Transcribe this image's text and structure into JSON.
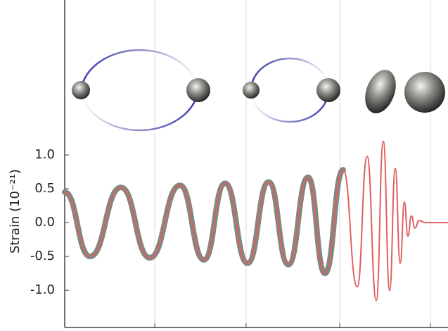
{
  "chart_data": {
    "type": "line",
    "ylabel": "Strain (10⁻²¹)",
    "xlim": [
      0,
      545
    ],
    "xticks": [
      128,
      258,
      391,
      520
    ],
    "ylim": [
      -1.55,
      3.29
    ],
    "yticks": [
      {
        "value": 1,
        "label": "1.0"
      },
      {
        "value": 0.5,
        "label": "0.5"
      },
      {
        "value": 0,
        "label": "0.0"
      },
      {
        "value": -0.5,
        "label": "-0.5"
      },
      {
        "value": -1,
        "label": "-1.0"
      }
    ],
    "grid": true,
    "series": [
      {
        "color": "#7d8a83",
        "width": 8,
        "x": [
          0,
          36,
          80,
          121,
          164,
          198,
          228,
          260,
          290,
          318,
          346,
          370,
          396
        ],
        "values": [
          0.45,
          -0.5,
          0.52,
          -0.52,
          0.55,
          -0.55,
          0.58,
          -0.6,
          0.6,
          -0.62,
          0.67,
          -0.75,
          0.78
        ]
      },
      {
        "color": "#e06060",
        "width": 2,
        "x": [
          0,
          36,
          80,
          121,
          164,
          198,
          228,
          260,
          290,
          318,
          346,
          370,
          396,
          416,
          430,
          443,
          453,
          462,
          470,
          477,
          483,
          488,
          493,
          498,
          504,
          513,
          545
        ],
        "values": [
          0.45,
          -0.5,
          0.52,
          -0.52,
          0.55,
          -0.55,
          0.58,
          -0.6,
          0.6,
          -0.62,
          0.67,
          -0.75,
          0.78,
          -0.95,
          0.98,
          -1.15,
          1.2,
          -1.0,
          0.8,
          -0.6,
          0.3,
          -0.2,
          0.1,
          -0.08,
          0.03,
          0,
          0
        ]
      }
    ]
  }
}
